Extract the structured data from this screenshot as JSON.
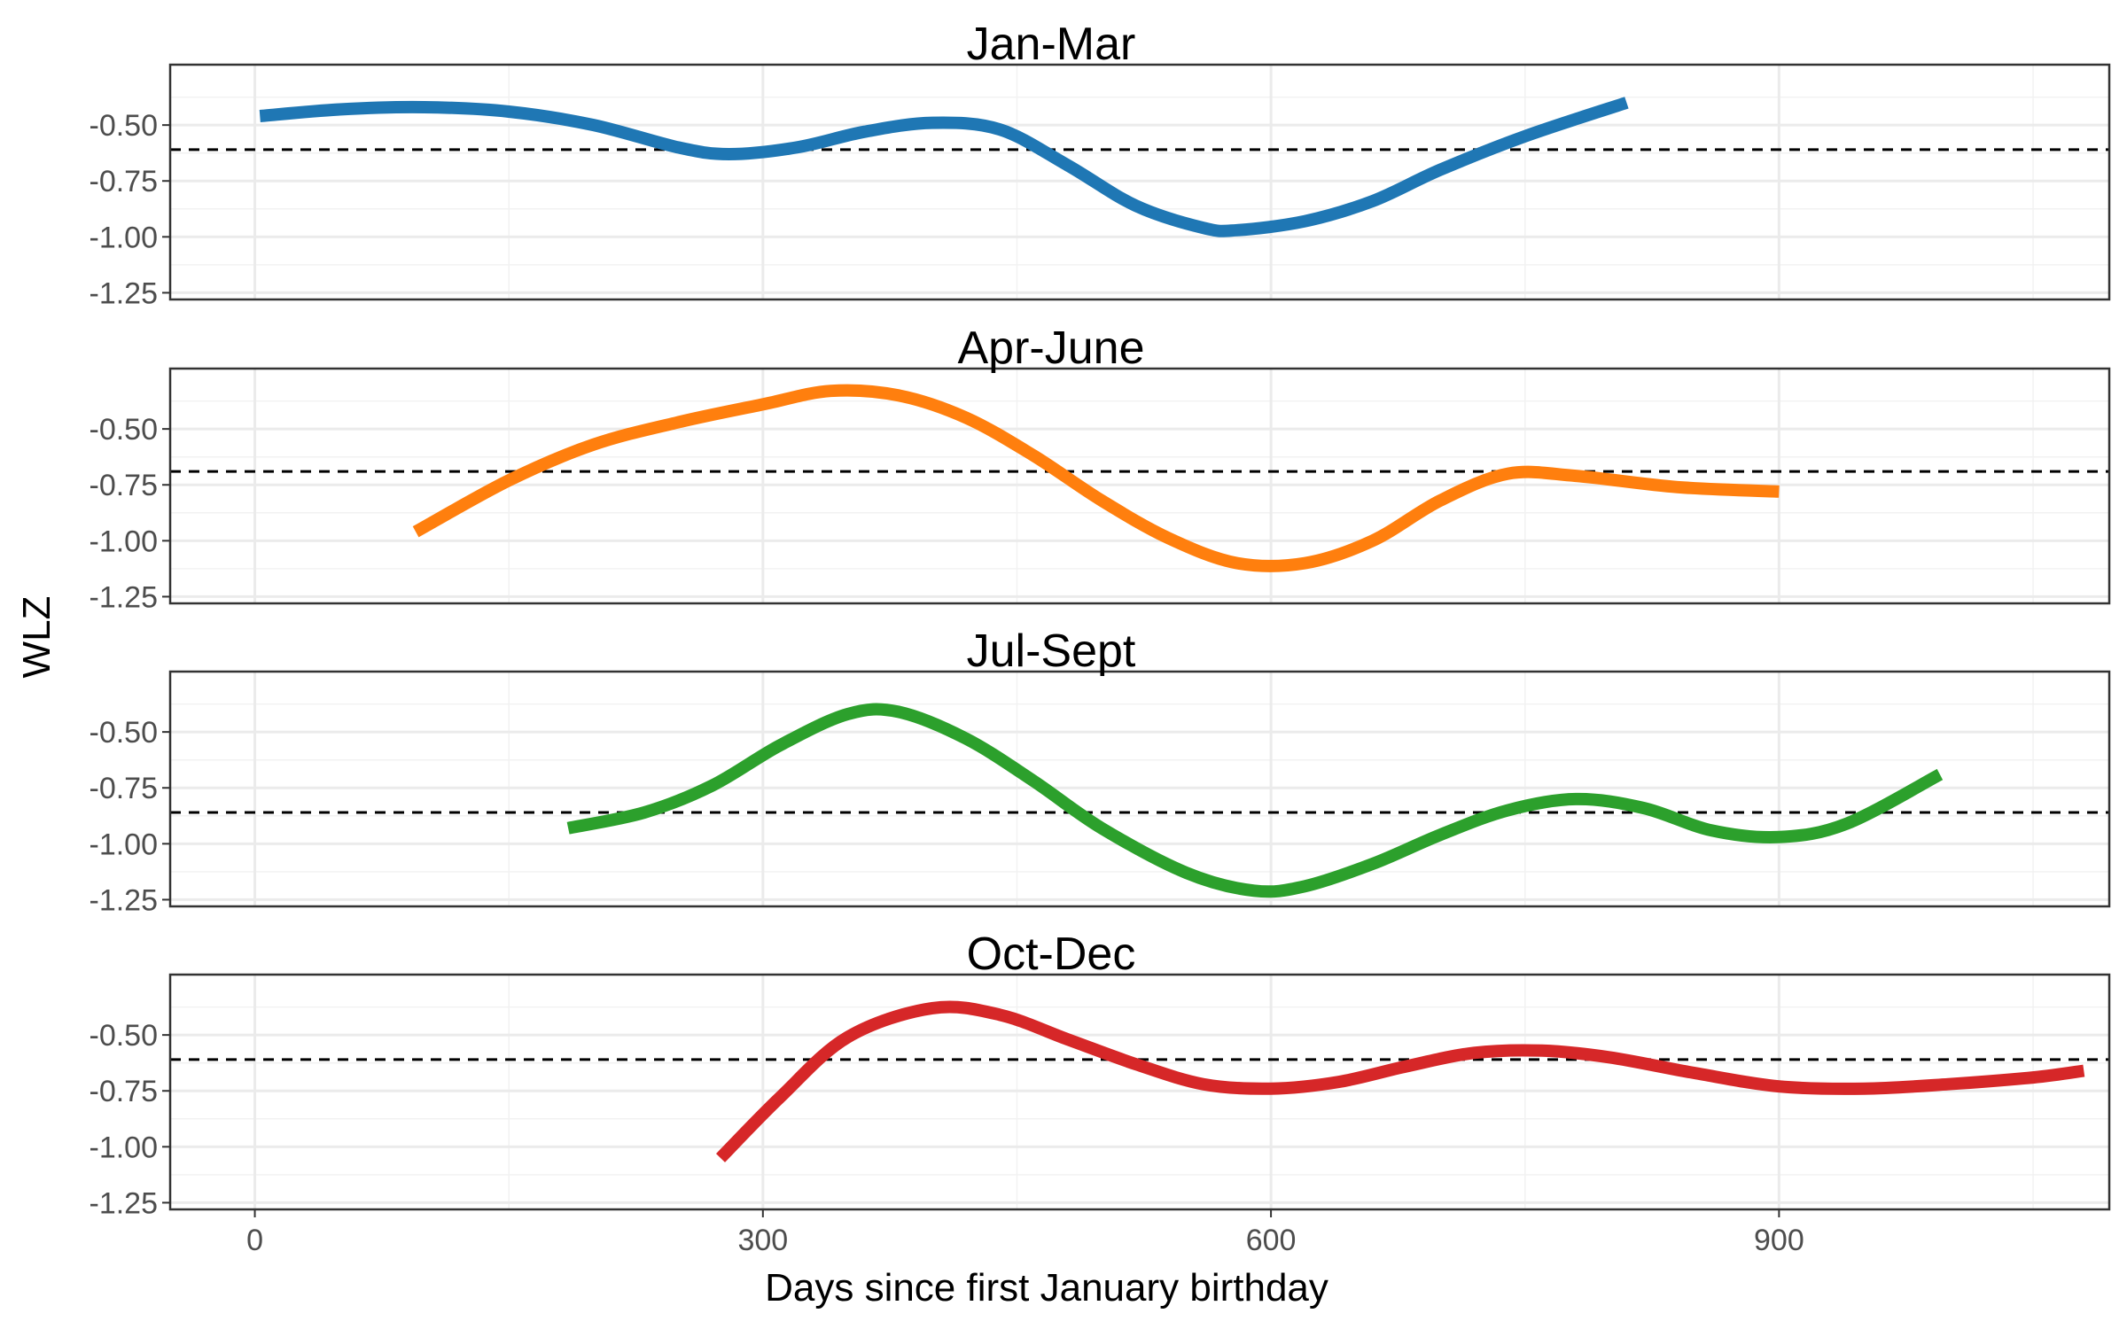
{
  "chart_data": {
    "type": "line",
    "xlabel": "Days since first January birthday",
    "ylabel": "WLZ",
    "xlim": [
      -50,
      1095
    ],
    "ylim": [
      -1.28,
      -0.23
    ],
    "x_ticks": [
      0,
      300,
      600,
      900
    ],
    "y_ticks": [
      -0.5,
      -0.75,
      -1.0,
      -1.25
    ],
    "y_tick_labels": [
      "-0.50",
      "-0.75",
      "-1.00",
      "-1.25"
    ],
    "x_tick_labels": [
      "0",
      "300",
      "600",
      "900"
    ],
    "grid": true,
    "legend": "none",
    "panels": [
      {
        "title": "Jan-Mar",
        "color": "#1f77b4",
        "reference_line": -0.61,
        "points": [
          [
            3,
            -0.46
          ],
          [
            50,
            -0.43
          ],
          [
            100,
            -0.42
          ],
          [
            150,
            -0.44
          ],
          [
            200,
            -0.5
          ],
          [
            250,
            -0.6
          ],
          [
            280,
            -0.63
          ],
          [
            320,
            -0.6
          ],
          [
            360,
            -0.53
          ],
          [
            400,
            -0.49
          ],
          [
            440,
            -0.52
          ],
          [
            480,
            -0.68
          ],
          [
            520,
            -0.86
          ],
          [
            560,
            -0.96
          ],
          [
            580,
            -0.97
          ],
          [
            620,
            -0.93
          ],
          [
            660,
            -0.84
          ],
          [
            700,
            -0.7
          ],
          [
            750,
            -0.55
          ],
          [
            810,
            -0.4
          ]
        ]
      },
      {
        "title": "Apr-June",
        "color": "#ff7f0e",
        "reference_line": -0.69,
        "points": [
          [
            95,
            -0.96
          ],
          [
            150,
            -0.73
          ],
          [
            200,
            -0.57
          ],
          [
            250,
            -0.47
          ],
          [
            300,
            -0.39
          ],
          [
            340,
            -0.33
          ],
          [
            380,
            -0.35
          ],
          [
            420,
            -0.45
          ],
          [
            460,
            -0.62
          ],
          [
            500,
            -0.82
          ],
          [
            540,
            -0.99
          ],
          [
            580,
            -1.1
          ],
          [
            620,
            -1.1
          ],
          [
            660,
            -1.0
          ],
          [
            700,
            -0.82
          ],
          [
            740,
            -0.7
          ],
          [
            780,
            -0.71
          ],
          [
            840,
            -0.76
          ],
          [
            900,
            -0.78
          ]
        ]
      },
      {
        "title": "Jul-Sept",
        "color": "#2ca02c",
        "reference_line": -0.86,
        "points": [
          [
            185,
            -0.93
          ],
          [
            230,
            -0.86
          ],
          [
            270,
            -0.74
          ],
          [
            310,
            -0.56
          ],
          [
            350,
            -0.42
          ],
          [
            380,
            -0.41
          ],
          [
            420,
            -0.53
          ],
          [
            460,
            -0.72
          ],
          [
            500,
            -0.93
          ],
          [
            550,
            -1.13
          ],
          [
            590,
            -1.21
          ],
          [
            620,
            -1.19
          ],
          [
            660,
            -1.09
          ],
          [
            700,
            -0.96
          ],
          [
            740,
            -0.85
          ],
          [
            780,
            -0.8
          ],
          [
            820,
            -0.84
          ],
          [
            860,
            -0.94
          ],
          [
            900,
            -0.97
          ],
          [
            940,
            -0.91
          ],
          [
            995,
            -0.69
          ]
        ]
      },
      {
        "title": "Oct-Dec",
        "color": "#d62728",
        "reference_line": -0.61,
        "points": [
          [
            275,
            -1.05
          ],
          [
            310,
            -0.78
          ],
          [
            350,
            -0.51
          ],
          [
            400,
            -0.38
          ],
          [
            440,
            -0.41
          ],
          [
            480,
            -0.52
          ],
          [
            520,
            -0.63
          ],
          [
            560,
            -0.72
          ],
          [
            600,
            -0.74
          ],
          [
            640,
            -0.71
          ],
          [
            680,
            -0.64
          ],
          [
            720,
            -0.58
          ],
          [
            760,
            -0.57
          ],
          [
            800,
            -0.6
          ],
          [
            850,
            -0.67
          ],
          [
            900,
            -0.73
          ],
          [
            950,
            -0.74
          ],
          [
            1000,
            -0.72
          ],
          [
            1050,
            -0.69
          ],
          [
            1080,
            -0.66
          ]
        ]
      }
    ]
  }
}
